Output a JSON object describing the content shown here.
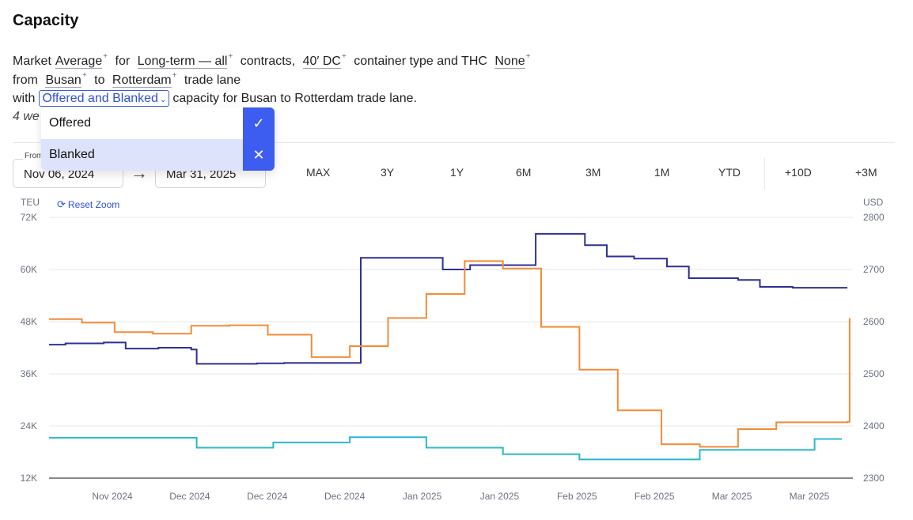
{
  "page": {
    "title": "Capacity"
  },
  "sentence": {
    "w_market": "Market",
    "w_average": "Average",
    "w_for": "for",
    "contract_term": "Long-term — all",
    "w_contracts": "contracts,",
    "container": "40′ DC",
    "w_container_type": "container type and THC",
    "thc": "None",
    "w_from": "from",
    "origin": "Busan",
    "w_to": "to",
    "destination": "Rotterdam",
    "w_trade_lane": "trade lane",
    "w_with": "with",
    "capacity_select": "Offered and Blanked",
    "w_capacity_suffix": "capacity for Busan to Rotterdam trade lane.",
    "line4": "4 we",
    "sup": "+"
  },
  "dropdown": {
    "options": [
      {
        "label": "Offered",
        "action_icon": "check-icon",
        "selected": false
      },
      {
        "label": "Blanked",
        "action_icon": "close-icon",
        "selected": true
      }
    ],
    "check_glyph": "✓",
    "close_glyph": "✕"
  },
  "controls": {
    "from_label": "From",
    "from_date": "Nov 06, 2024",
    "to_date": "Mar 31, 2025",
    "arrow_glyph": "→",
    "ranges": [
      "MAX",
      "3Y",
      "1Y",
      "6M",
      "3M",
      "1M",
      "YTD",
      "+10D",
      "+3M"
    ],
    "reset_zoom": "Reset Zoom",
    "reset_icon": "refresh-icon"
  },
  "colors": {
    "offered": "#2e3192",
    "price": "#f28c38",
    "blanked": "#2bb8c9",
    "accent": "#3d5cf0"
  },
  "chart_data": {
    "type": "line",
    "left_axis": {
      "unit": "TEU",
      "ticks": [
        "12K",
        "24K",
        "36K",
        "48K",
        "60K",
        "72K"
      ],
      "range": [
        12000,
        72000
      ]
    },
    "right_axis": {
      "unit": "USD",
      "ticks": [
        "2300",
        "2400",
        "2500",
        "2600",
        "2700",
        "2800"
      ],
      "range": [
        2300,
        2800
      ]
    },
    "x_ticks": [
      "Nov 2024",
      "Dec 2024",
      "Dec 2024",
      "Dec 2024",
      "Jan 2025",
      "Jan 2025",
      "Feb 2025",
      "Feb 2025",
      "Mar 2025",
      "Mar 2025"
    ],
    "x_domain": [
      0,
      147
    ],
    "grid": true,
    "series": [
      {
        "axis": "left",
        "color_key": "offered",
        "step": true,
        "points": [
          [
            0,
            42700
          ],
          [
            3,
            43000
          ],
          [
            10,
            43200
          ],
          [
            14,
            41800
          ],
          [
            20,
            42000
          ],
          [
            26,
            41600
          ],
          [
            27,
            38300
          ],
          [
            38,
            38400
          ],
          [
            43,
            38500
          ],
          [
            57,
            62700
          ],
          [
            72,
            60000
          ],
          [
            77,
            61000
          ],
          [
            89,
            68200
          ],
          [
            98,
            65600
          ],
          [
            102,
            63000
          ],
          [
            107,
            62500
          ],
          [
            113,
            60700
          ],
          [
            117,
            58000
          ],
          [
            126,
            57600
          ],
          [
            130,
            56000
          ],
          [
            136,
            55800
          ],
          [
            146,
            55800
          ]
        ]
      },
      {
        "axis": "right",
        "color_key": "price",
        "step": true,
        "points": [
          [
            0,
            2605
          ],
          [
            6,
            2598
          ],
          [
            12,
            2580
          ],
          [
            19,
            2577
          ],
          [
            26,
            2592
          ],
          [
            33,
            2593
          ],
          [
            40,
            2575
          ],
          [
            48,
            2532
          ],
          [
            55,
            2553
          ],
          [
            62,
            2607
          ],
          [
            69,
            2653
          ],
          [
            76,
            2716
          ],
          [
            83,
            2702
          ],
          [
            90,
            2590
          ],
          [
            97,
            2508
          ],
          [
            104,
            2430
          ],
          [
            112,
            2365
          ],
          [
            119,
            2360
          ],
          [
            126,
            2394
          ],
          [
            133,
            2407
          ],
          [
            146,
            2408
          ],
          [
            146.4,
            2607
          ]
        ]
      },
      {
        "axis": "left",
        "color_key": "blanked",
        "step": true,
        "points": [
          [
            0,
            21300
          ],
          [
            27,
            19000
          ],
          [
            41,
            20200
          ],
          [
            55,
            21400
          ],
          [
            69,
            19000
          ],
          [
            83,
            17500
          ],
          [
            97,
            16300
          ],
          [
            119,
            18500
          ],
          [
            140,
            21000
          ],
          [
            145,
            21000
          ]
        ]
      }
    ]
  }
}
